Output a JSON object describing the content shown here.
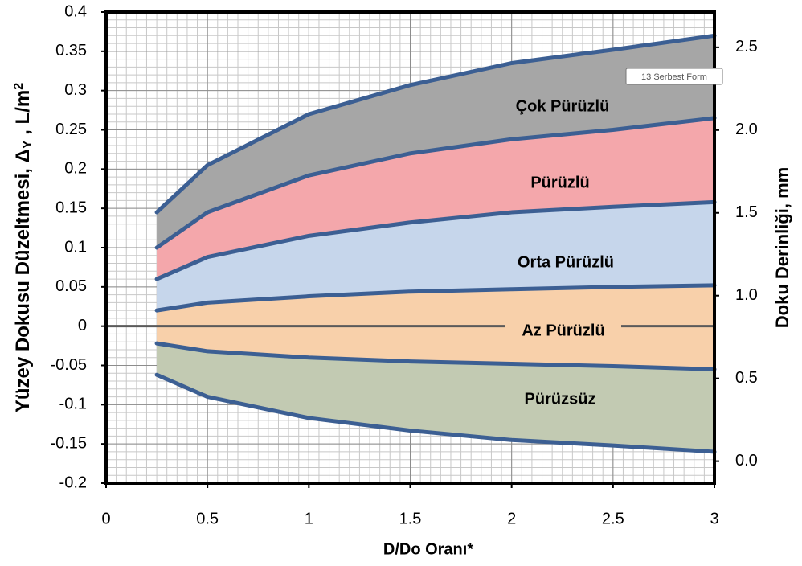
{
  "chart_data": {
    "type": "band",
    "x": [
      0.25,
      0.5,
      1,
      1.5,
      2,
      2.5,
      3
    ],
    "series": [
      {
        "color": "#3c5f93",
        "values": [
          0.145,
          0.205,
          0.27,
          0.307,
          0.335,
          0.352,
          0.37
        ]
      },
      {
        "color": "#3c5f93",
        "values": [
          0.1,
          0.145,
          0.192,
          0.22,
          0.238,
          0.25,
          0.265
        ]
      },
      {
        "color": "#3c5f93",
        "values": [
          0.06,
          0.088,
          0.115,
          0.132,
          0.145,
          0.152,
          0.158
        ]
      },
      {
        "color": "#3c5f93",
        "values": [
          0.02,
          0.03,
          0.038,
          0.044,
          0.047,
          0.05,
          0.052
        ]
      },
      {
        "color": "#3c5f93",
        "values": [
          -0.022,
          -0.032,
          -0.04,
          -0.045,
          -0.048,
          -0.051,
          -0.055
        ]
      },
      {
        "color": "#3c5f93",
        "values": [
          -0.062,
          -0.09,
          -0.117,
          -0.133,
          -0.145,
          -0.152,
          -0.16
        ]
      }
    ],
    "bands": [
      {
        "label": "Çok Pürüzlü",
        "color": "#a6a6a6"
      },
      {
        "label": "Pürüzlü",
        "color": "#f4a7ab"
      },
      {
        "label": "Orta Pürüzlü",
        "color": "#c6d6eb"
      },
      {
        "label": "Az Pürüzlü",
        "color": "#f8d0aa"
      },
      {
        "label": "Pürüzsüz",
        "color": "#c2cab2"
      }
    ],
    "xlabel": "D/Do Oranı*",
    "ylabel": [
      "Yüzey Dokusu Düzeltmesi, Δ",
      "Y",
      " , L/m",
      "2"
    ],
    "y2label": "Doku Derinliği, mm",
    "tooltip": "13 Serbest Form",
    "xlim": [
      0,
      3
    ],
    "xticks": [
      0,
      0.5,
      1,
      1.5,
      2,
      2.5,
      3
    ],
    "ylim": [
      -0.2,
      0.4
    ],
    "yticks": [
      -0.2,
      -0.15,
      -0.1,
      -0.05,
      0,
      0.05,
      0.1,
      0.15,
      0.2,
      0.25,
      0.3,
      0.35,
      0.4
    ],
    "y2lim": [
      -0.133,
      2.713
    ],
    "y2ticks": [
      {
        "value": 0,
        "label": "0.0"
      },
      0.5,
      {
        "value": 1,
        "label": "1.0"
      },
      1.5,
      {
        "value": 2,
        "label": "2.0"
      },
      2.5
    ],
    "grid": true
  }
}
